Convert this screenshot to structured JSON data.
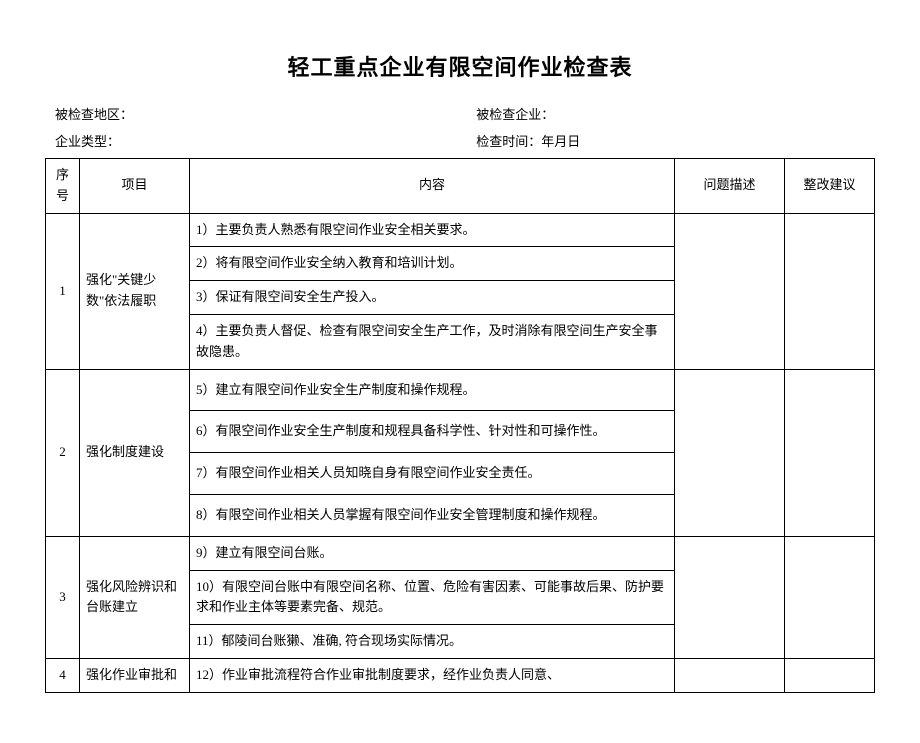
{
  "title": "轻工重点企业有限空间作业检查表",
  "meta": {
    "row1_left": "被检查地区：",
    "row1_right": "被检查企业：",
    "row2_left": "企业类型：",
    "row2_right": "检查时间：年月日"
  },
  "headers": {
    "seq": "序号",
    "item": "项目",
    "content": "内容",
    "issue": "问题描述",
    "suggest": "整改建议"
  },
  "rows": [
    {
      "seq": "1",
      "item": "强化\"关键少数\"依法履职",
      "contents": [
        "1）主要负责人熟悉有限空间作业安全相关要求。",
        "2）将有限空间作业安全纳入教育和培训计划。",
        "3）保证有限空间安全生产投入。",
        "4）主要负责人督促、检查有限空间安全生产工作，及时消除有限空间生产安全事故隐患。"
      ]
    },
    {
      "seq": "2",
      "item": "强化制度建设",
      "contents": [
        "5）建立有限空间作业安全生产制度和操作规程。",
        "6）有限空间作业安全生产制度和规程具备科学性、针对性和可操作性。",
        "7）有限空间作业相关人员知晓自身有限空间作业安全责任。",
        "8）有限空间作业相关人员掌握有限空间作业安全管理制度和操作规程。"
      ]
    },
    {
      "seq": "3",
      "item": "强化风险辨识和台账建立",
      "contents": [
        "9）建立有限空间台账。",
        "10）有限空间台账中有限空间名称、位置、危险有害因素、可能事故后果、防护要求和作业主体等要素完备、规范。",
        "11）郁陵间台账獭、准确, 符合现场实际情况。"
      ]
    },
    {
      "seq": "4",
      "item": "强化作业审批和",
      "contents": [
        "12）作业审批流程符合作业审批制度要求，经作业负责人同意、"
      ]
    }
  ]
}
